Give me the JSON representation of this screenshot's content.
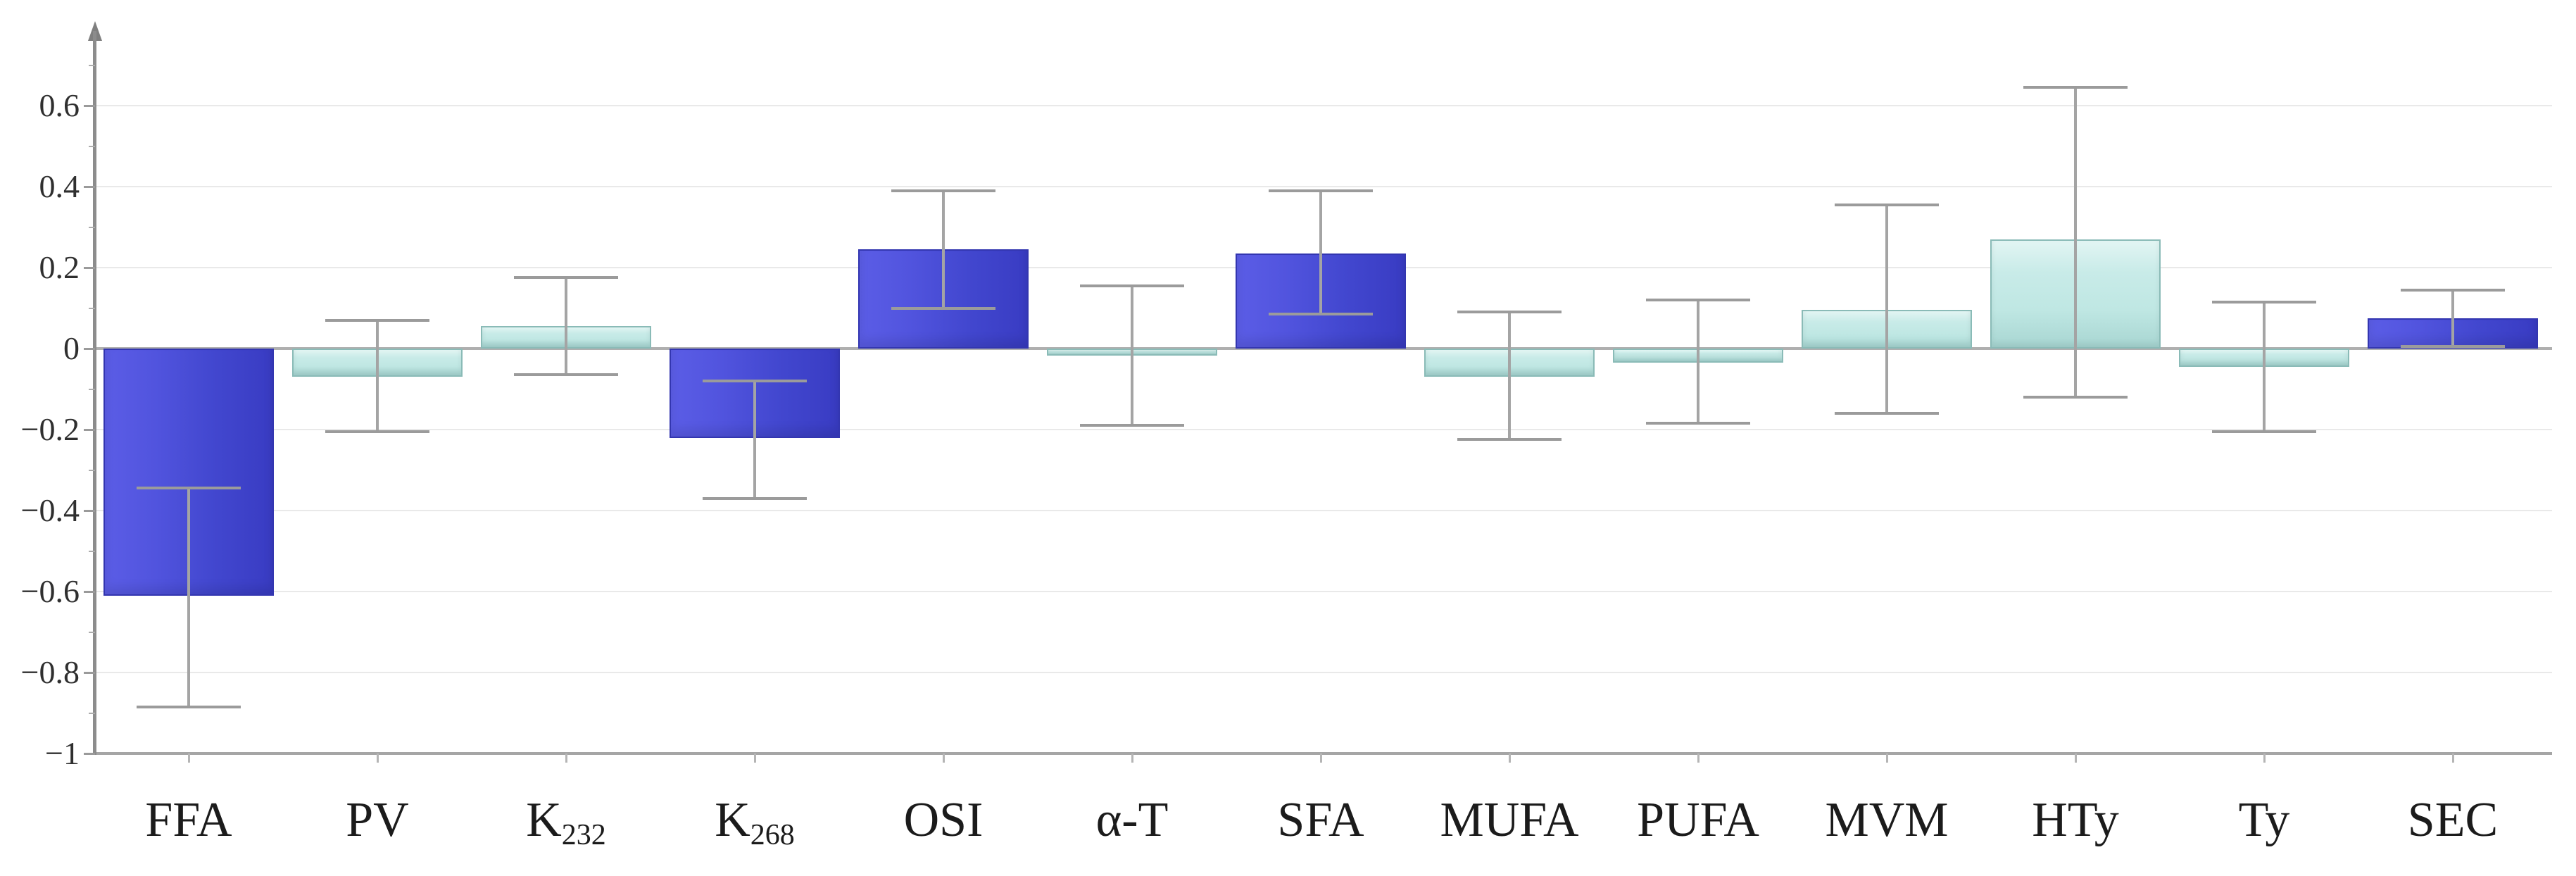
{
  "chart_data": {
    "type": "bar",
    "title": "",
    "xlabel": "",
    "ylabel": "",
    "grid": true,
    "legend": false,
    "ylim": [
      -1,
      0.78
    ],
    "categories": [
      {
        "label": "FFA",
        "sub": ""
      },
      {
        "label": "PV",
        "sub": ""
      },
      {
        "label": "K",
        "sub": "232"
      },
      {
        "label": "K",
        "sub": "268"
      },
      {
        "label": "OSI",
        "sub": ""
      },
      {
        "label": "α-T",
        "sub": ""
      },
      {
        "label": "SFA",
        "sub": ""
      },
      {
        "label": "MUFA",
        "sub": ""
      },
      {
        "label": "PUFA",
        "sub": ""
      },
      {
        "label": "MVM",
        "sub": ""
      },
      {
        "label": "HTy",
        "sub": ""
      },
      {
        "label": "Ty",
        "sub": ""
      },
      {
        "label": "SEC",
        "sub": ""
      }
    ],
    "values": [
      -0.61,
      -0.07,
      0.055,
      -0.22,
      0.245,
      -0.017,
      0.235,
      -0.07,
      -0.035,
      0.095,
      0.27,
      -0.045,
      0.075
    ],
    "error_bars": {
      "upper": [
        -0.345,
        0.07,
        0.175,
        -0.08,
        0.39,
        0.155,
        0.39,
        0.09,
        0.12,
        0.355,
        0.645,
        0.115,
        0.145
      ],
      "lower": [
        -0.885,
        -0.205,
        -0.065,
        -0.37,
        0.1,
        -0.19,
        0.085,
        -0.225,
        -0.185,
        -0.16,
        -0.12,
        -0.205,
        0.005
      ]
    },
    "bar_color_key": [
      "blue",
      "cyan",
      "cyan",
      "blue",
      "blue",
      "cyan",
      "blue",
      "cyan",
      "cyan",
      "cyan",
      "cyan",
      "cyan",
      "blue"
    ],
    "palette": {
      "blue": "#4649D2",
      "cyan": "#C3E9E6",
      "error_bar": "#9B9B9B",
      "axis": "#8C8C8C",
      "gridline": "#E9E9E9",
      "zero_line": "#AFAFAF",
      "text": "#1B1B1B"
    },
    "y_axis": {
      "ticks": [
        0.6,
        0.4,
        0.2,
        0,
        -0.2,
        -0.4,
        -0.6,
        -0.8,
        -1
      ],
      "tick_labels": [
        "0.6",
        "0.4",
        "0.2",
        "0",
        "−0.2",
        "−0.4",
        "−0.6",
        "−0.8",
        "−1"
      ],
      "minor_ticks": [
        0.7,
        0.5,
        0.3,
        0.1,
        -0.1,
        -0.3,
        -0.5,
        -0.7,
        -0.9
      ]
    }
  }
}
